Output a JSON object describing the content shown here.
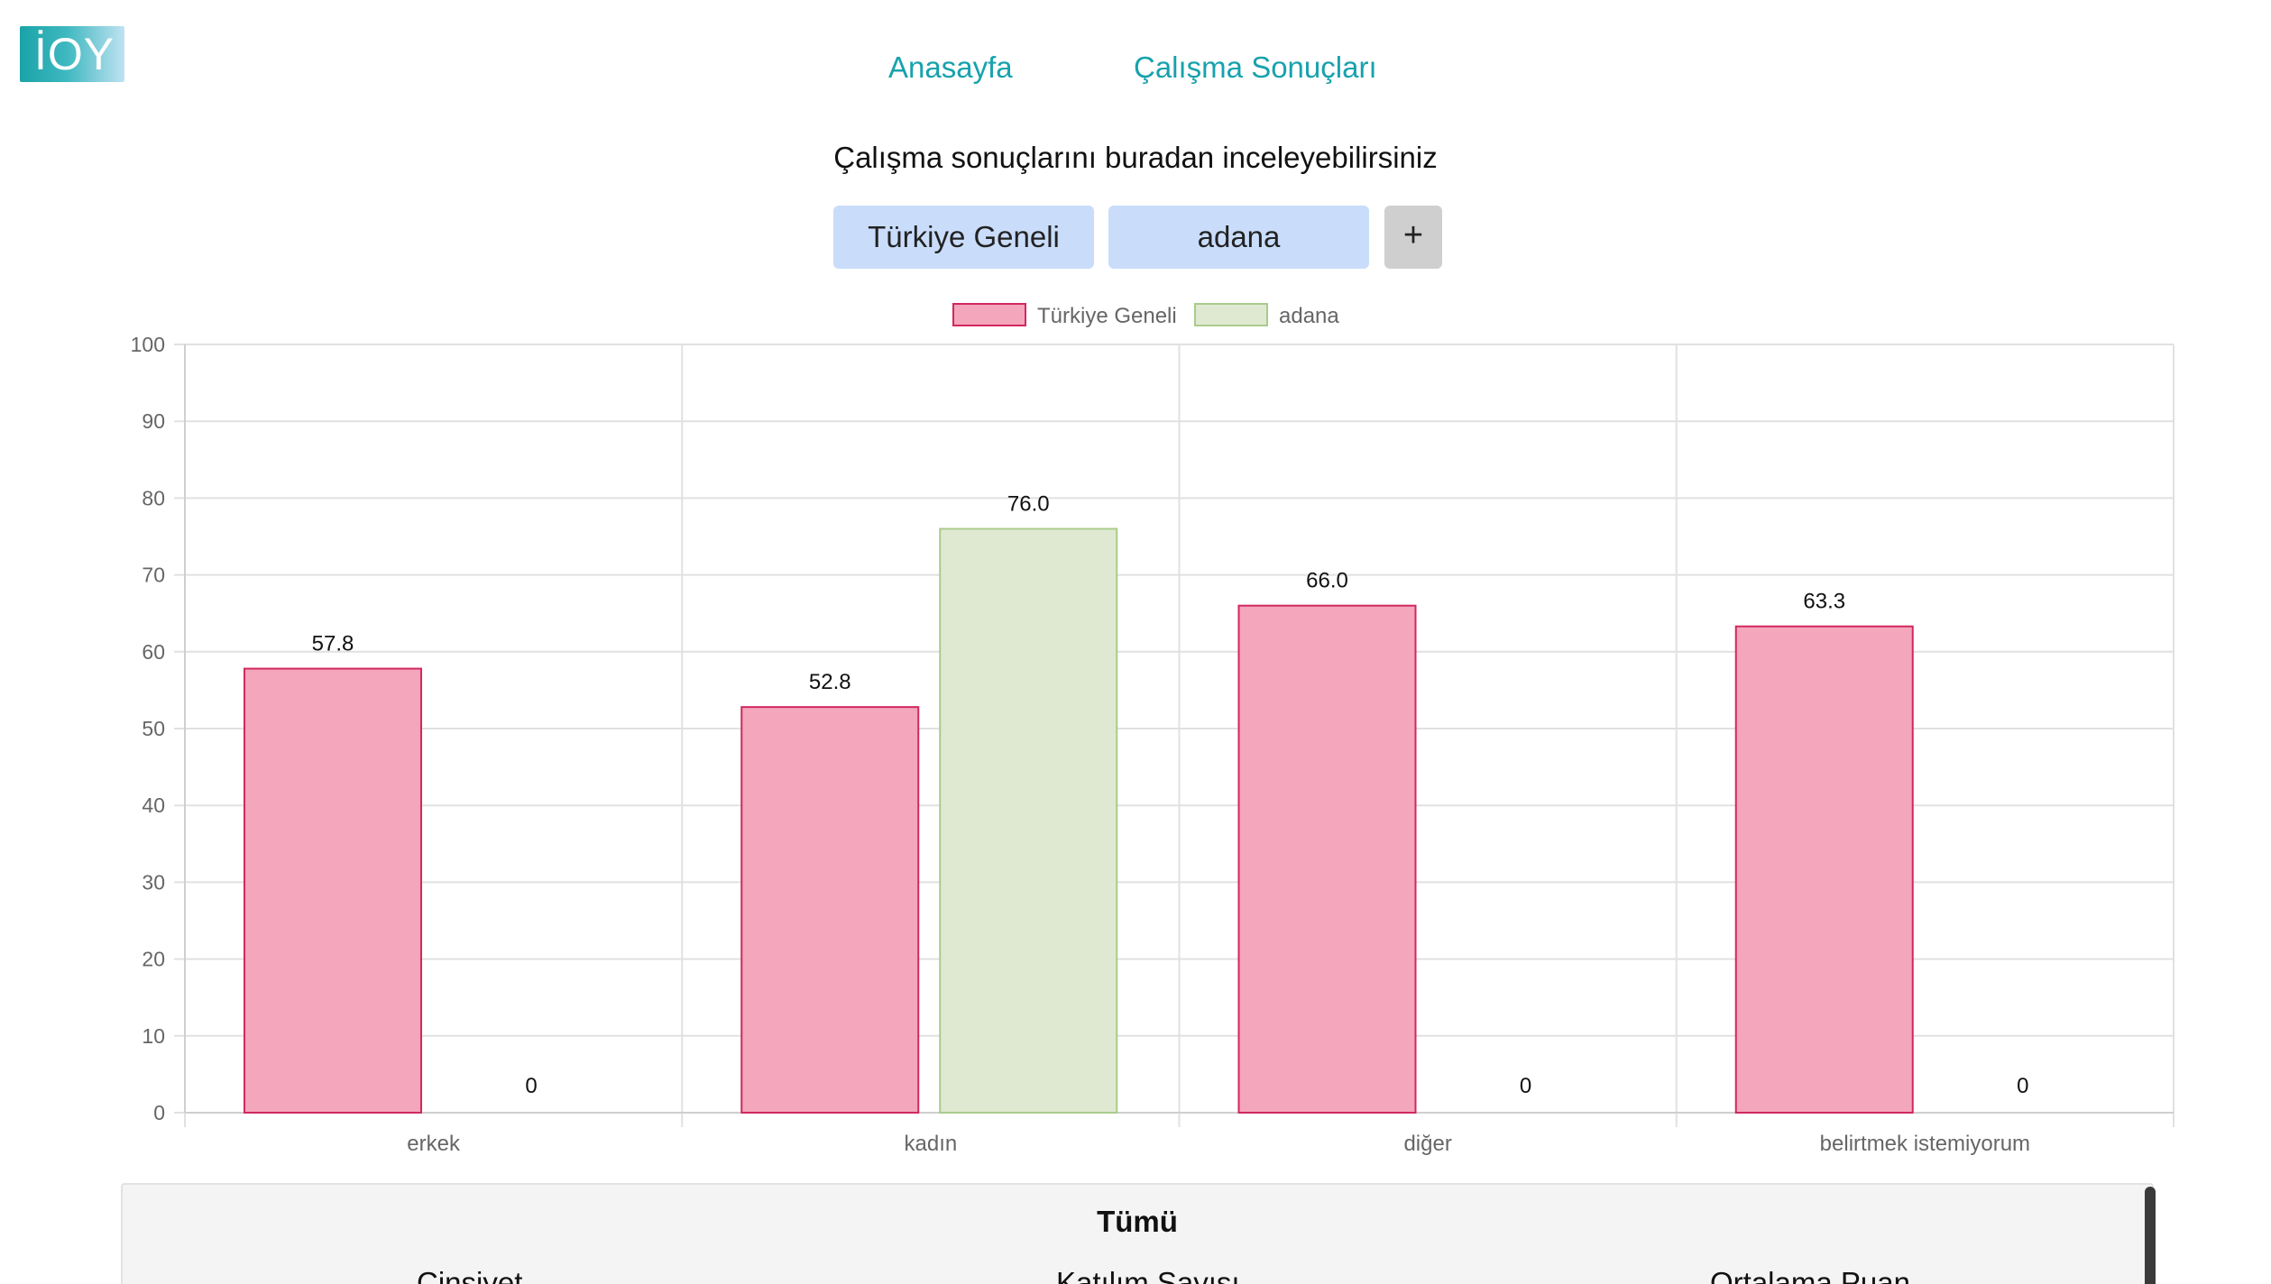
{
  "logo": {
    "text": "İOY"
  },
  "nav": {
    "home": "Anasayfa",
    "results": "Çalışma Sonuçları"
  },
  "subtitle": "Çalışma sonuçlarını buradan inceleyebilirsiniz",
  "filters": {
    "buttons": [
      "Türkiye Geneli",
      "adana"
    ],
    "add_label": "+"
  },
  "colors": {
    "accent": "#17a2ad",
    "series_1_fill": "#f3a6bc",
    "series_1_stroke": "#d1285f",
    "series_2_fill": "#dfe9d1",
    "series_2_stroke": "#a9cb8c",
    "filter_button": "#c9ddfb"
  },
  "chart_data": {
    "type": "bar",
    "categories": [
      "erkek",
      "kadın",
      "diğer",
      "belirtmek istemiyorum"
    ],
    "series": [
      {
        "name": "Türkiye Geneli",
        "values": [
          57.8,
          52.8,
          66.0,
          63.3
        ],
        "labels": [
          "57.8",
          "52.8",
          "66.0",
          "63.3"
        ]
      },
      {
        "name": "adana",
        "values": [
          0,
          76.0,
          0,
          0
        ],
        "labels": [
          "0",
          "76.0",
          "0",
          "0"
        ]
      }
    ],
    "ylim": [
      0,
      100
    ],
    "yticks": [
      0,
      10,
      20,
      30,
      40,
      50,
      60,
      70,
      80,
      90,
      100
    ],
    "legend": "top-center",
    "grid": true,
    "title": "",
    "xlabel": "",
    "ylabel": ""
  },
  "summary": {
    "title": "Tümü",
    "columns": [
      "Cinsiyet",
      "Katılım Sayısı",
      "Ortalama Puan"
    ]
  }
}
